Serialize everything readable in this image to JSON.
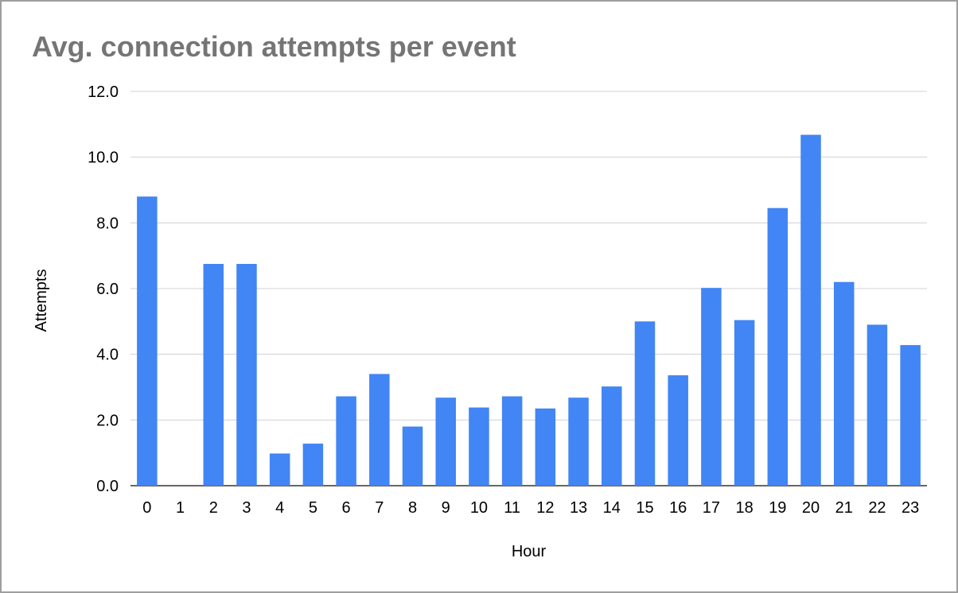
{
  "chart_data": {
    "type": "bar",
    "title": "Avg. connection attempts per event",
    "xlabel": "Hour",
    "ylabel": "Attempts",
    "categories": [
      "0",
      "1",
      "2",
      "3",
      "4",
      "5",
      "6",
      "7",
      "8",
      "9",
      "10",
      "11",
      "12",
      "13",
      "14",
      "15",
      "16",
      "17",
      "18",
      "19",
      "20",
      "21",
      "22",
      "23"
    ],
    "series": [
      {
        "values": [
          8.8,
          0,
          6.75,
          6.75,
          0.98,
          1.28,
          2.72,
          3.4,
          1.8,
          2.68,
          2.38,
          2.72,
          2.35,
          2.68,
          3.02,
          5.0,
          3.36,
          6.02,
          5.04,
          8.45,
          10.68,
          6.2,
          4.9,
          4.28
        ]
      }
    ],
    "yticks": [
      "0.0",
      "2.0",
      "4.0",
      "6.0",
      "8.0",
      "10.0",
      "12.0"
    ],
    "ylim": [
      0,
      12
    ],
    "grid": true,
    "bar_color": "#4285f4"
  }
}
